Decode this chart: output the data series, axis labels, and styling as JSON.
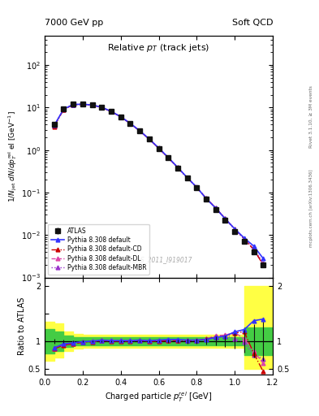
{
  "title_left": "7000 GeV pp",
  "title_right": "Soft QCD",
  "plot_title": "Relative $p_{T}$ (track jets)",
  "xlabel": "Charged particle $p^{rel}_{T}$ [GeV]",
  "ylabel_main": "$1/N_{jet}$ $dN/dp^{rel}_{T}$ el [GeV$^{-1}$]",
  "ylabel_ratio": "Ratio to ATLAS",
  "right_label_top": "Rivet 3.1.10, ≥ 3M events",
  "right_label_bottom": "mcplots.cern.ch [arXiv:1306.3436]",
  "watermark": "ATLAS_2011_I919017",
  "x_data": [
    0.05,
    0.1,
    0.15,
    0.2,
    0.25,
    0.3,
    0.35,
    0.4,
    0.45,
    0.5,
    0.55,
    0.6,
    0.65,
    0.7,
    0.75,
    0.8,
    0.85,
    0.9,
    0.95,
    1.0,
    1.05,
    1.1,
    1.15
  ],
  "atlas_y": [
    4.0,
    9.5,
    12.0,
    12.0,
    11.5,
    10.0,
    8.0,
    6.0,
    4.2,
    2.8,
    1.8,
    1.1,
    0.65,
    0.38,
    0.22,
    0.13,
    0.07,
    0.04,
    0.022,
    0.012,
    0.007,
    0.004,
    0.002
  ],
  "atlas_yerr": [
    0.3,
    0.4,
    0.5,
    0.5,
    0.4,
    0.4,
    0.3,
    0.25,
    0.18,
    0.12,
    0.08,
    0.05,
    0.03,
    0.018,
    0.01,
    0.006,
    0.004,
    0.002,
    0.001,
    0.0008,
    0.0005,
    0.0003,
    0.00015
  ],
  "pythia_default_y": [
    3.8,
    9.2,
    11.8,
    12.0,
    11.5,
    10.2,
    8.1,
    6.1,
    4.25,
    2.85,
    1.82,
    1.12,
    0.67,
    0.39,
    0.225,
    0.133,
    0.072,
    0.043,
    0.024,
    0.014,
    0.0085,
    0.0055,
    0.0028
  ],
  "pythia_CD_y": [
    3.6,
    9.0,
    11.6,
    11.9,
    11.4,
    10.1,
    8.05,
    6.05,
    4.22,
    2.82,
    1.8,
    1.1,
    0.66,
    0.385,
    0.222,
    0.132,
    0.073,
    0.043,
    0.024,
    0.0138,
    0.0082,
    0.0045,
    0.002
  ],
  "pythia_DL_y": [
    3.7,
    9.1,
    11.7,
    11.95,
    11.45,
    10.15,
    8.08,
    6.08,
    4.24,
    2.84,
    1.81,
    1.11,
    0.665,
    0.388,
    0.224,
    0.133,
    0.073,
    0.044,
    0.0245,
    0.0139,
    0.0083,
    0.0046,
    0.0021
  ],
  "pythia_MBR_y": [
    3.75,
    9.15,
    11.75,
    11.97,
    11.47,
    10.17,
    8.09,
    6.09,
    4.23,
    2.83,
    1.815,
    1.115,
    0.668,
    0.387,
    0.223,
    0.1325,
    0.0725,
    0.0432,
    0.0242,
    0.0136,
    0.008,
    0.0048,
    0.0022
  ],
  "ratio_default": [
    0.88,
    0.95,
    0.97,
    0.99,
    1.0,
    1.02,
    1.01,
    1.01,
    1.01,
    1.02,
    1.01,
    1.02,
    1.03,
    1.03,
    1.02,
    1.02,
    1.03,
    1.07,
    1.09,
    1.17,
    1.21,
    1.37,
    1.4
  ],
  "ratio_CD": [
    0.86,
    0.93,
    0.95,
    0.98,
    0.99,
    1.01,
    1.0,
    1.0,
    1.0,
    1.01,
    1.0,
    1.0,
    1.01,
    1.01,
    1.01,
    1.01,
    1.04,
    1.07,
    1.09,
    1.15,
    1.17,
    0.78,
    0.45
  ],
  "ratio_DL": [
    0.87,
    0.94,
    0.96,
    0.985,
    0.995,
    1.015,
    1.01,
    1.01,
    1.01,
    1.01,
    1.005,
    1.01,
    1.02,
    1.02,
    1.02,
    1.02,
    1.04,
    1.1,
    1.11,
    1.16,
    1.04,
    0.82,
    0.6
  ],
  "ratio_MBR": [
    0.87,
    0.945,
    0.965,
    0.988,
    0.998,
    1.017,
    1.012,
    1.015,
    1.008,
    1.011,
    1.008,
    1.014,
    1.027,
    1.02,
    1.014,
    1.019,
    1.036,
    1.08,
    1.1,
    1.05,
    0.98,
    0.75,
    0.68
  ],
  "ratio_atlas_err": [
    0.05,
    0.03,
    0.02,
    0.02,
    0.02,
    0.02,
    0.02,
    0.02,
    0.02,
    0.02,
    0.02,
    0.02,
    0.03,
    0.03,
    0.04,
    0.05,
    0.06,
    0.08,
    0.1,
    0.14,
    0.2,
    0.3,
    0.35
  ],
  "yellow_band_x": [
    0.0,
    0.05,
    0.1,
    0.15,
    0.2,
    0.25,
    0.3,
    0.35,
    0.4,
    0.45,
    0.5,
    0.55,
    0.6,
    0.65,
    0.7,
    0.75,
    0.8,
    0.85,
    0.9,
    0.95,
    1.0,
    1.05,
    1.1,
    1.15,
    1.2
  ],
  "yellow_band_lo": [
    0.65,
    0.7,
    0.82,
    0.87,
    0.88,
    0.88,
    0.88,
    0.88,
    0.88,
    0.88,
    0.88,
    0.88,
    0.88,
    0.88,
    0.88,
    0.88,
    0.88,
    0.88,
    0.88,
    0.88,
    0.88,
    0.5,
    0.5,
    0.5,
    0.5
  ],
  "yellow_band_hi": [
    1.35,
    1.32,
    1.18,
    1.13,
    1.12,
    1.12,
    1.12,
    1.12,
    1.12,
    1.12,
    1.12,
    1.12,
    1.12,
    1.12,
    1.12,
    1.12,
    1.12,
    1.12,
    1.12,
    1.12,
    1.12,
    2.0,
    2.0,
    2.0,
    2.0
  ],
  "green_band_lo": [
    0.78,
    0.82,
    0.9,
    0.93,
    0.93,
    0.93,
    0.93,
    0.93,
    0.93,
    0.93,
    0.93,
    0.93,
    0.93,
    0.93,
    0.93,
    0.93,
    0.93,
    0.93,
    0.93,
    0.93,
    0.93,
    0.75,
    0.75,
    0.75,
    0.75
  ],
  "green_band_hi": [
    1.22,
    1.18,
    1.1,
    1.07,
    1.07,
    1.07,
    1.07,
    1.07,
    1.07,
    1.07,
    1.07,
    1.07,
    1.07,
    1.07,
    1.07,
    1.07,
    1.07,
    1.07,
    1.07,
    1.07,
    1.07,
    1.25,
    1.25,
    1.25,
    1.25
  ],
  "color_default": "#3333ff",
  "color_CD": "#cc0000",
  "color_DL": "#dd44aa",
  "color_MBR": "#9933cc",
  "color_atlas": "#111111",
  "color_yellow": "#ffff44",
  "color_green": "#44cc44",
  "ylim_main": [
    0.001,
    500
  ],
  "ylim_ratio": [
    0.4,
    2.15
  ],
  "xlim": [
    0.0,
    1.2
  ],
  "legend_order": [
    "ATLAS",
    "Pythia 8.308 default",
    "Pythia 8.308 default-CD",
    "Pythia 8.308 default-DL",
    "Pythia 8.308 default-MBR"
  ]
}
